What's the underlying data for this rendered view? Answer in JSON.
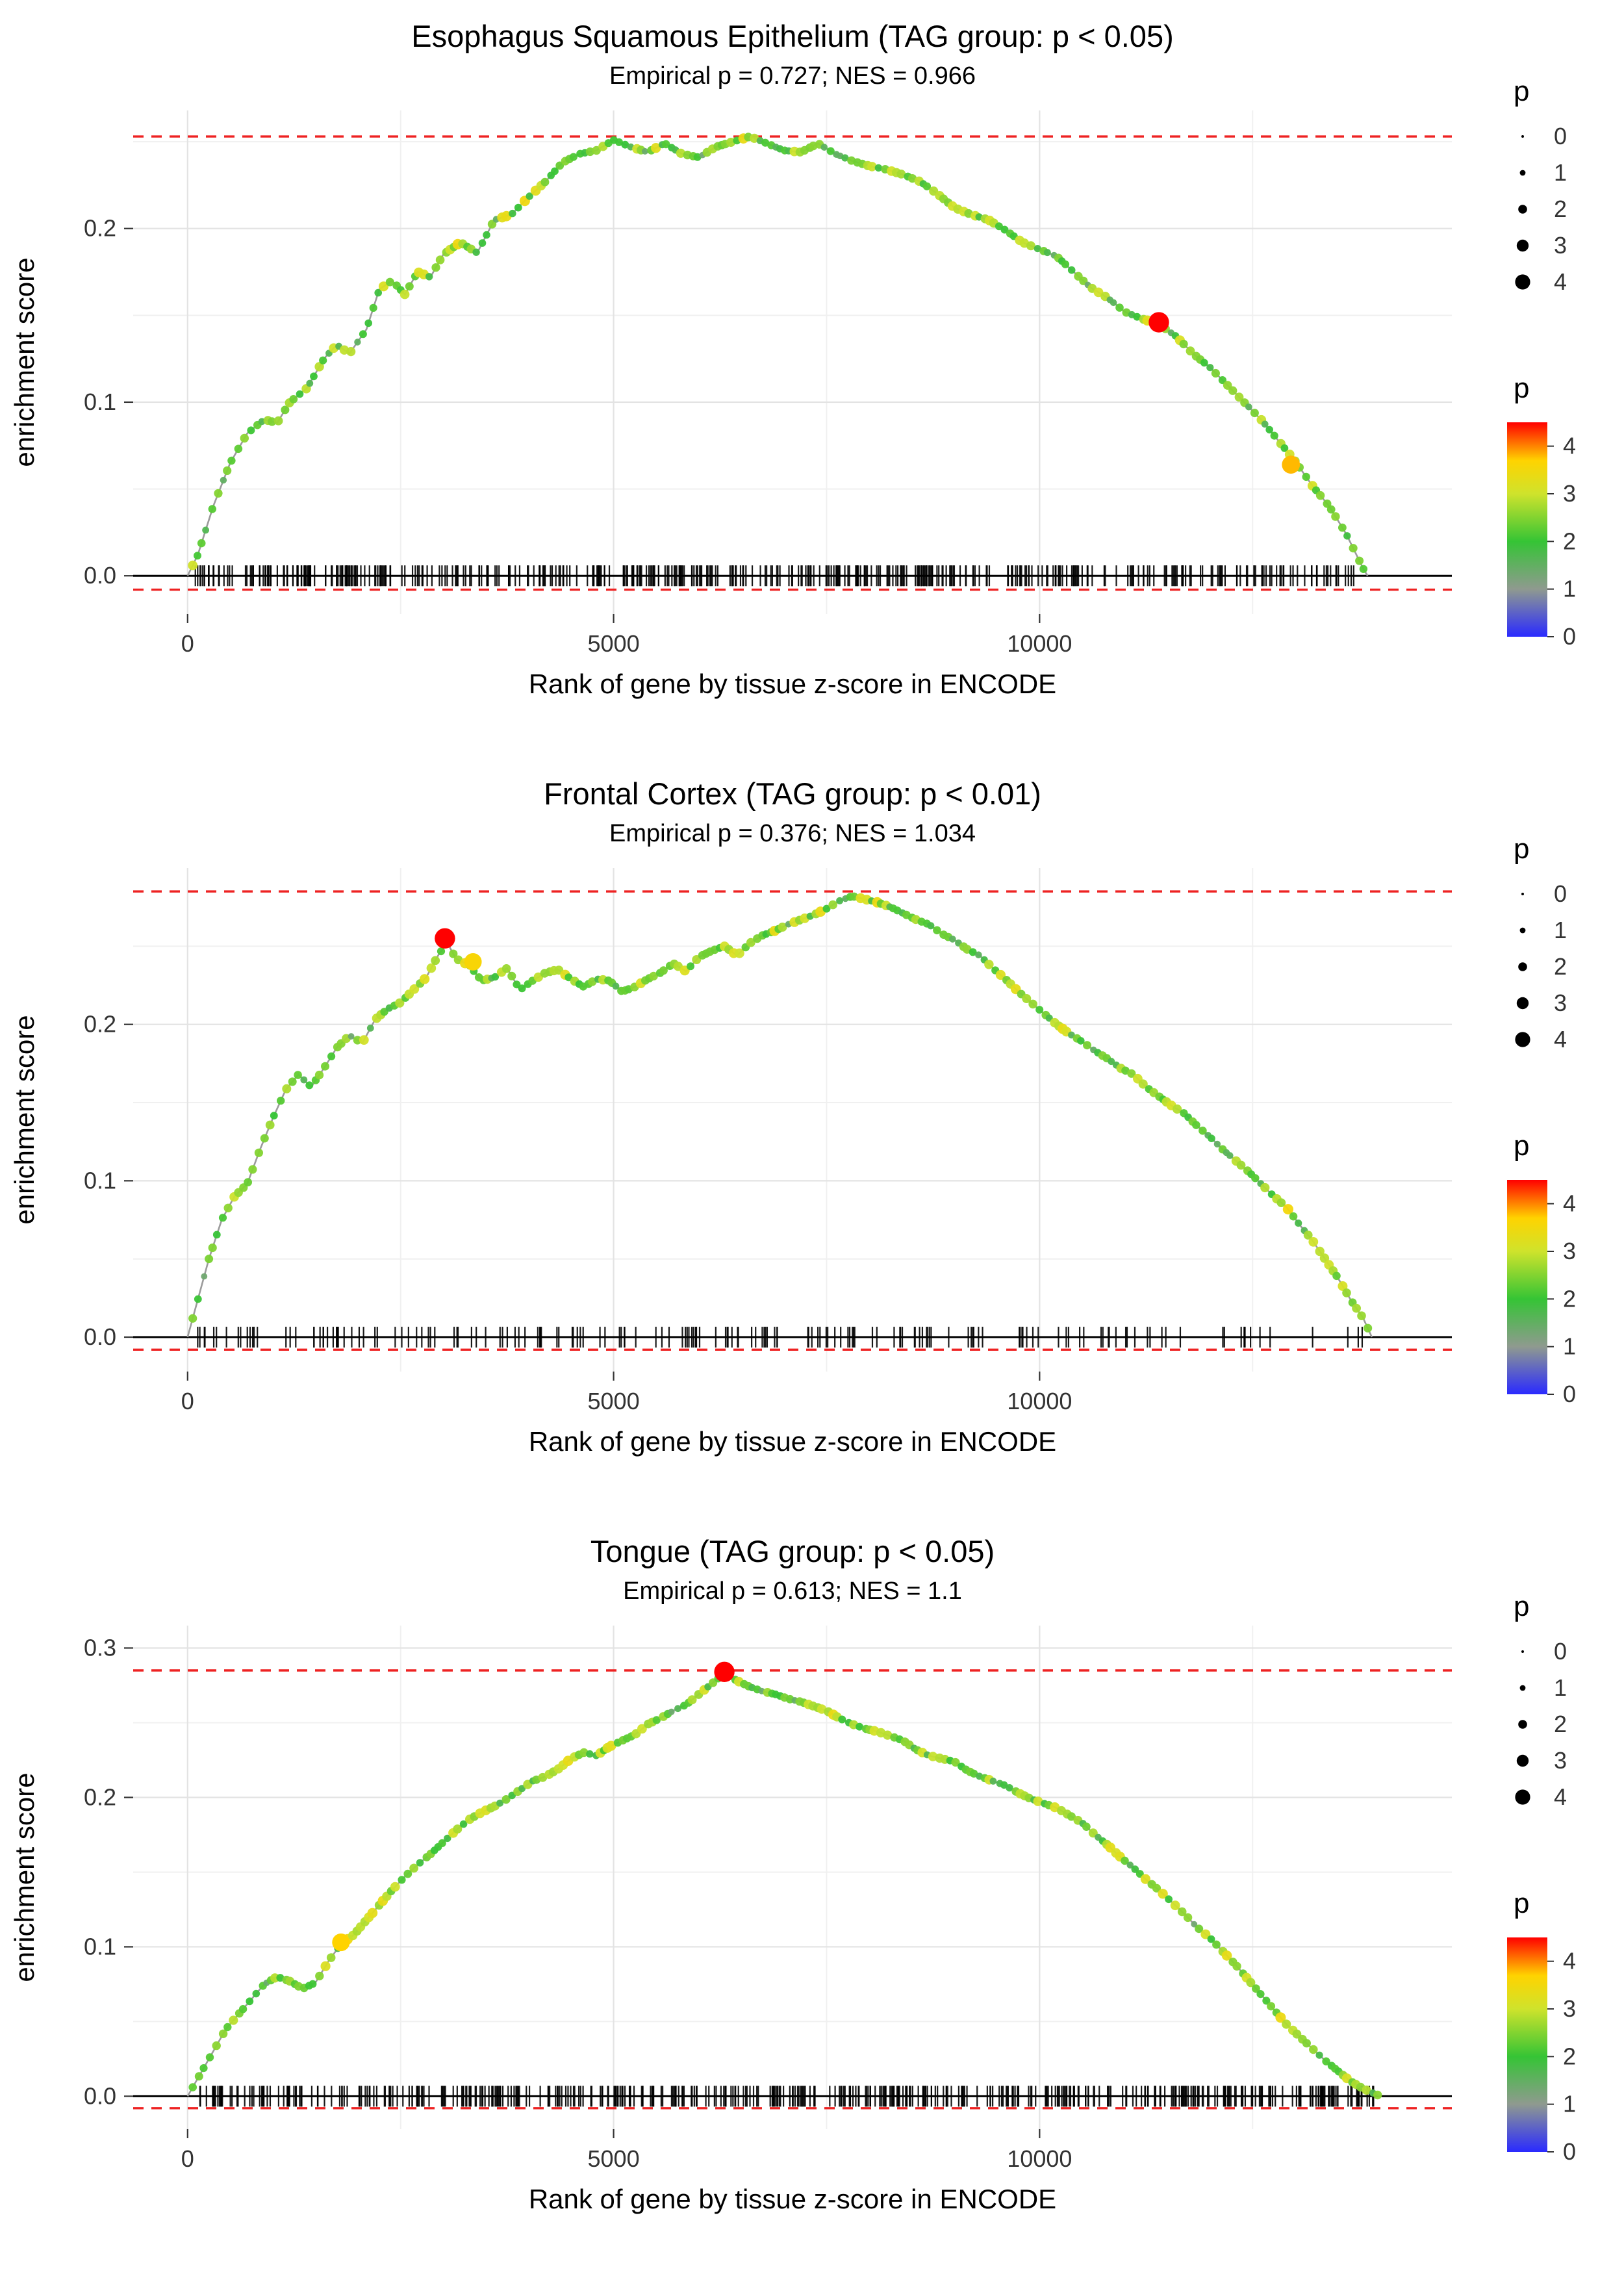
{
  "figure": {
    "background": "#ffffff",
    "grid_major_color": "#e3e3e3",
    "grid_minor_color": "#f0f0f0",
    "dashed_line_color": "#ee2222",
    "zero_line_color": "#000000",
    "curve_line_color": "#9b9b9b",
    "tick_label_color": "#333333"
  },
  "legend": {
    "size_title": "p",
    "size_items": [
      0,
      1,
      2,
      3,
      4
    ],
    "color_title": "p",
    "color_ticks": [
      4,
      3,
      2,
      1,
      0
    ],
    "color_domain": [
      0,
      4.5
    ],
    "gradient_stops": [
      {
        "p": 0.0,
        "color": "#2a2aff"
      },
      {
        "p": 1.0,
        "color": "#8f9a8f"
      },
      {
        "p": 2.0,
        "color": "#35c435"
      },
      {
        "p": 3.0,
        "color": "#cfe32c"
      },
      {
        "p": 3.7,
        "color": "#ffd300"
      },
      {
        "p": 4.1,
        "color": "#ff6a00"
      },
      {
        "p": 4.5,
        "color": "#ff0000"
      }
    ]
  },
  "chart_data": [
    {
      "type": "line",
      "title": "Esophagus Squamous Epithelium (TAG group: p < 0.05)",
      "subtitle": "Empirical p = 0.727; NES = 0.966",
      "xlabel": "Rank of gene by tissue z-score in ENCODE",
      "ylabel": "enrichment score",
      "x_ticks": [
        0,
        5000,
        10000
      ],
      "y_ticks": [
        0.0,
        0.1,
        0.2
      ],
      "xlim": [
        0,
        14200
      ],
      "ylim": [
        -0.022,
        0.268
      ],
      "hline_top": 0.253,
      "hline_bottom": -0.008,
      "rug_count": 450,
      "rug_xmax": 13800,
      "rug_seed": 11,
      "highlight_points": [
        {
          "x": 11400,
          "y": 0.146,
          "p": 4.5
        },
        {
          "x": 12950,
          "y": 0.064,
          "p": 3.8
        }
      ],
      "curve": [
        [
          0,
          0
        ],
        [
          120,
          0.012
        ],
        [
          300,
          0.04
        ],
        [
          500,
          0.065
        ],
        [
          700,
          0.082
        ],
        [
          900,
          0.09
        ],
        [
          1050,
          0.088
        ],
        [
          1200,
          0.1
        ],
        [
          1400,
          0.108
        ],
        [
          1600,
          0.125
        ],
        [
          1750,
          0.133
        ],
        [
          1900,
          0.128
        ],
        [
          2100,
          0.142
        ],
        [
          2250,
          0.165
        ],
        [
          2400,
          0.17
        ],
        [
          2550,
          0.162
        ],
        [
          2700,
          0.175
        ],
        [
          2850,
          0.172
        ],
        [
          3000,
          0.185
        ],
        [
          3200,
          0.192
        ],
        [
          3400,
          0.186
        ],
        [
          3600,
          0.205
        ],
        [
          3800,
          0.208
        ],
        [
          4000,
          0.218
        ],
        [
          4200,
          0.227
        ],
        [
          4400,
          0.238
        ],
        [
          4600,
          0.243
        ],
        [
          4800,
          0.245
        ],
        [
          5000,
          0.251
        ],
        [
          5200,
          0.247
        ],
        [
          5400,
          0.244
        ],
        [
          5600,
          0.249
        ],
        [
          5800,
          0.243
        ],
        [
          6000,
          0.241
        ],
        [
          6200,
          0.247
        ],
        [
          6400,
          0.25
        ],
        [
          6600,
          0.253
        ],
        [
          6800,
          0.249
        ],
        [
          7000,
          0.245
        ],
        [
          7200,
          0.244
        ],
        [
          7400,
          0.249
        ],
        [
          7600,
          0.243
        ],
        [
          7800,
          0.239
        ],
        [
          8000,
          0.236
        ],
        [
          8200,
          0.234
        ],
        [
          8400,
          0.231
        ],
        [
          8600,
          0.227
        ],
        [
          8800,
          0.22
        ],
        [
          9000,
          0.212
        ],
        [
          9200,
          0.208
        ],
        [
          9400,
          0.205
        ],
        [
          9600,
          0.199
        ],
        [
          9800,
          0.192
        ],
        [
          10000,
          0.188
        ],
        [
          10200,
          0.184
        ],
        [
          10400,
          0.175
        ],
        [
          10600,
          0.166
        ],
        [
          10800,
          0.16
        ],
        [
          11000,
          0.152
        ],
        [
          11200,
          0.148
        ],
        [
          11400,
          0.145
        ],
        [
          11600,
          0.138
        ],
        [
          11800,
          0.128
        ],
        [
          12000,
          0.12
        ],
        [
          12200,
          0.11
        ],
        [
          12400,
          0.1
        ],
        [
          12600,
          0.09
        ],
        [
          12800,
          0.078
        ],
        [
          13000,
          0.066
        ],
        [
          13200,
          0.052
        ],
        [
          13400,
          0.04
        ],
        [
          13600,
          0.024
        ],
        [
          13800,
          0.004
        ],
        [
          13850,
          0
        ]
      ]
    },
    {
      "type": "line",
      "title": "Frontal Cortex (TAG group: p < 0.01)",
      "subtitle": "Empirical p = 0.376; NES = 1.034",
      "xlabel": "Rank of gene by tissue z-score in ENCODE",
      "ylabel": "enrichment score",
      "x_ticks": [
        0,
        5000,
        10000
      ],
      "y_ticks": [
        0.0,
        0.1,
        0.2
      ],
      "xlim": [
        0,
        14200
      ],
      "ylim": [
        -0.022,
        0.3
      ],
      "hline_top": 0.285,
      "hline_bottom": -0.008,
      "rug_count": 175,
      "rug_xmax": 13900,
      "rug_seed": 22,
      "highlight_points": [
        {
          "x": 3020,
          "y": 0.255,
          "p": 4.5
        },
        {
          "x": 3350,
          "y": 0.24,
          "p": 3.6
        }
      ],
      "curve": [
        [
          0,
          0
        ],
        [
          100,
          0.02
        ],
        [
          250,
          0.05
        ],
        [
          400,
          0.075
        ],
        [
          550,
          0.09
        ],
        [
          700,
          0.098
        ],
        [
          850,
          0.12
        ],
        [
          1000,
          0.14
        ],
        [
          1150,
          0.158
        ],
        [
          1300,
          0.168
        ],
        [
          1450,
          0.16
        ],
        [
          1600,
          0.172
        ],
        [
          1750,
          0.185
        ],
        [
          1900,
          0.193
        ],
        [
          2050,
          0.188
        ],
        [
          2200,
          0.203
        ],
        [
          2350,
          0.21
        ],
        [
          2500,
          0.214
        ],
        [
          2650,
          0.222
        ],
        [
          2800,
          0.23
        ],
        [
          2950,
          0.245
        ],
        [
          3050,
          0.252
        ],
        [
          3150,
          0.242
        ],
        [
          3300,
          0.238
        ],
        [
          3450,
          0.228
        ],
        [
          3600,
          0.23
        ],
        [
          3750,
          0.236
        ],
        [
          3900,
          0.222
        ],
        [
          4050,
          0.228
        ],
        [
          4200,
          0.233
        ],
        [
          4350,
          0.235
        ],
        [
          4500,
          0.229
        ],
        [
          4650,
          0.224
        ],
        [
          4800,
          0.229
        ],
        [
          4950,
          0.228
        ],
        [
          5100,
          0.221
        ],
        [
          5250,
          0.224
        ],
        [
          5400,
          0.229
        ],
        [
          5550,
          0.233
        ],
        [
          5700,
          0.239
        ],
        [
          5850,
          0.234
        ],
        [
          6000,
          0.243
        ],
        [
          6150,
          0.247
        ],
        [
          6300,
          0.25
        ],
        [
          6450,
          0.244
        ],
        [
          6600,
          0.252
        ],
        [
          6750,
          0.257
        ],
        [
          6900,
          0.26
        ],
        [
          7050,
          0.264
        ],
        [
          7200,
          0.267
        ],
        [
          7350,
          0.27
        ],
        [
          7500,
          0.274
        ],
        [
          7650,
          0.279
        ],
        [
          7800,
          0.282
        ],
        [
          7950,
          0.28
        ],
        [
          8100,
          0.278
        ],
        [
          8250,
          0.275
        ],
        [
          8400,
          0.271
        ],
        [
          8550,
          0.267
        ],
        [
          8700,
          0.264
        ],
        [
          8850,
          0.258
        ],
        [
          9000,
          0.254
        ],
        [
          9150,
          0.248
        ],
        [
          9300,
          0.244
        ],
        [
          9450,
          0.236
        ],
        [
          9600,
          0.229
        ],
        [
          9750,
          0.221
        ],
        [
          9900,
          0.214
        ],
        [
          10050,
          0.207
        ],
        [
          10200,
          0.2
        ],
        [
          10350,
          0.194
        ],
        [
          10500,
          0.189
        ],
        [
          10650,
          0.183
        ],
        [
          10800,
          0.178
        ],
        [
          10950,
          0.172
        ],
        [
          11100,
          0.168
        ],
        [
          11250,
          0.16
        ],
        [
          11400,
          0.154
        ],
        [
          11550,
          0.148
        ],
        [
          11700,
          0.143
        ],
        [
          11850,
          0.135
        ],
        [
          12000,
          0.128
        ],
        [
          12150,
          0.12
        ],
        [
          12300,
          0.113
        ],
        [
          12450,
          0.106
        ],
        [
          12600,
          0.098
        ],
        [
          12750,
          0.09
        ],
        [
          12900,
          0.083
        ],
        [
          13050,
          0.072
        ],
        [
          13200,
          0.062
        ],
        [
          13350,
          0.05
        ],
        [
          13500,
          0.038
        ],
        [
          13650,
          0.024
        ],
        [
          13800,
          0.012
        ],
        [
          13900,
          0
        ]
      ]
    },
    {
      "type": "line",
      "title": "Tongue (TAG group: p < 0.05)",
      "subtitle": "Empirical p = 0.613; NES = 1.1",
      "xlabel": "Rank of gene by tissue z-score in ENCODE",
      "ylabel": "enrichment score",
      "x_ticks": [
        0,
        5000,
        10000
      ],
      "y_ticks": [
        0.0,
        0.1,
        0.2,
        0.3
      ],
      "xlim": [
        0,
        14200
      ],
      "ylim": [
        -0.022,
        0.315
      ],
      "hline_top": 0.285,
      "hline_bottom": -0.008,
      "rug_count": 480,
      "rug_xmax": 14000,
      "rug_seed": 33,
      "highlight_points": [
        {
          "x": 6300,
          "y": 0.284,
          "p": 4.5
        },
        {
          "x": 1800,
          "y": 0.103,
          "p": 3.7
        }
      ],
      "curve": [
        [
          0,
          0
        ],
        [
          150,
          0.015
        ],
        [
          300,
          0.03
        ],
        [
          450,
          0.045
        ],
        [
          600,
          0.055
        ],
        [
          750,
          0.065
        ],
        [
          900,
          0.075
        ],
        [
          1050,
          0.08
        ],
        [
          1200,
          0.077
        ],
        [
          1350,
          0.072
        ],
        [
          1500,
          0.076
        ],
        [
          1650,
          0.09
        ],
        [
          1800,
          0.102
        ],
        [
          1950,
          0.108
        ],
        [
          2100,
          0.118
        ],
        [
          2250,
          0.128
        ],
        [
          2400,
          0.138
        ],
        [
          2550,
          0.147
        ],
        [
          2700,
          0.155
        ],
        [
          2850,
          0.162
        ],
        [
          3000,
          0.17
        ],
        [
          3150,
          0.178
        ],
        [
          3300,
          0.185
        ],
        [
          3450,
          0.19
        ],
        [
          3600,
          0.194
        ],
        [
          3750,
          0.199
        ],
        [
          3900,
          0.205
        ],
        [
          4050,
          0.211
        ],
        [
          4200,
          0.214
        ],
        [
          4350,
          0.219
        ],
        [
          4500,
          0.226
        ],
        [
          4650,
          0.23
        ],
        [
          4800,
          0.228
        ],
        [
          4950,
          0.234
        ],
        [
          5100,
          0.238
        ],
        [
          5250,
          0.242
        ],
        [
          5400,
          0.249
        ],
        [
          5550,
          0.253
        ],
        [
          5700,
          0.258
        ],
        [
          5850,
          0.262
        ],
        [
          6000,
          0.269
        ],
        [
          6150,
          0.276
        ],
        [
          6300,
          0.283
        ],
        [
          6450,
          0.278
        ],
        [
          6600,
          0.274
        ],
        [
          6750,
          0.271
        ],
        [
          6900,
          0.269
        ],
        [
          7050,
          0.266
        ],
        [
          7200,
          0.264
        ],
        [
          7350,
          0.261
        ],
        [
          7500,
          0.258
        ],
        [
          7650,
          0.253
        ],
        [
          7800,
          0.249
        ],
        [
          7950,
          0.246
        ],
        [
          8100,
          0.244
        ],
        [
          8250,
          0.241
        ],
        [
          8400,
          0.238
        ],
        [
          8550,
          0.232
        ],
        [
          8700,
          0.228
        ],
        [
          8850,
          0.226
        ],
        [
          9000,
          0.224
        ],
        [
          9150,
          0.218
        ],
        [
          9300,
          0.214
        ],
        [
          9450,
          0.211
        ],
        [
          9600,
          0.208
        ],
        [
          9750,
          0.203
        ],
        [
          9900,
          0.199
        ],
        [
          10050,
          0.196
        ],
        [
          10200,
          0.193
        ],
        [
          10350,
          0.188
        ],
        [
          10500,
          0.183
        ],
        [
          10650,
          0.175
        ],
        [
          10800,
          0.168
        ],
        [
          10950,
          0.16
        ],
        [
          11100,
          0.153
        ],
        [
          11250,
          0.145
        ],
        [
          11400,
          0.138
        ],
        [
          11550,
          0.13
        ],
        [
          11700,
          0.122
        ],
        [
          11850,
          0.113
        ],
        [
          12000,
          0.106
        ],
        [
          12150,
          0.097
        ],
        [
          12300,
          0.088
        ],
        [
          12450,
          0.078
        ],
        [
          12600,
          0.068
        ],
        [
          12750,
          0.058
        ],
        [
          12900,
          0.048
        ],
        [
          13050,
          0.04
        ],
        [
          13200,
          0.032
        ],
        [
          13350,
          0.024
        ],
        [
          13500,
          0.017
        ],
        [
          13650,
          0.01
        ],
        [
          13800,
          0.005
        ],
        [
          14000,
          0
        ]
      ]
    }
  ]
}
